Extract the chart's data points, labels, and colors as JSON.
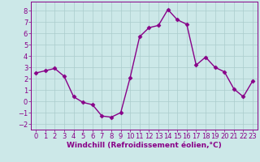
{
  "x": [
    0,
    1,
    2,
    3,
    4,
    5,
    6,
    7,
    8,
    9,
    10,
    11,
    12,
    13,
    14,
    15,
    16,
    17,
    18,
    19,
    20,
    21,
    22,
    23
  ],
  "y": [
    2.5,
    2.7,
    2.9,
    2.2,
    0.4,
    -0.1,
    -0.3,
    -1.3,
    -1.4,
    -1.0,
    2.1,
    5.7,
    6.5,
    6.7,
    8.1,
    7.2,
    6.8,
    3.2,
    3.9,
    3.0,
    2.6,
    1.1,
    0.4,
    1.8
  ],
  "line_color": "#880088",
  "marker": "D",
  "marker_size": 2.5,
  "bg_color": "#cce8e8",
  "grid_color": "#aacccc",
  "xlabel": "Windchill (Refroidissement éolien,°C)",
  "xlabel_fontsize": 6.5,
  "tick_fontsize": 6.0,
  "ylim": [
    -2.5,
    8.8
  ],
  "xlim": [
    -0.5,
    23.5
  ],
  "yticks": [
    -2,
    -1,
    0,
    1,
    2,
    3,
    4,
    5,
    6,
    7,
    8
  ],
  "xticks": [
    0,
    1,
    2,
    3,
    4,
    5,
    6,
    7,
    8,
    9,
    10,
    11,
    12,
    13,
    14,
    15,
    16,
    17,
    18,
    19,
    20,
    21,
    22,
    23
  ],
  "linewidth": 1.0
}
